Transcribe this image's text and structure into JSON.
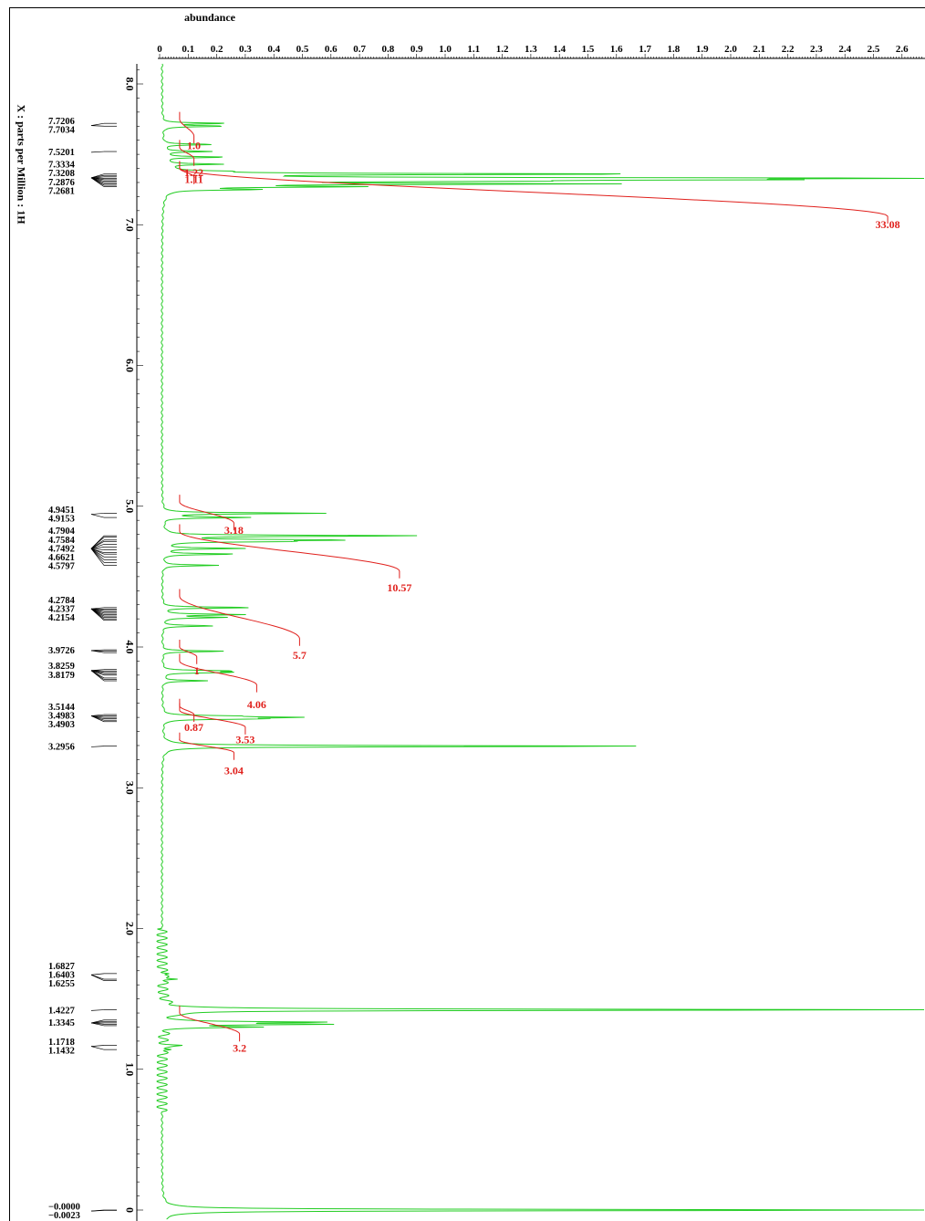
{
  "chart_data": {
    "type": "line",
    "xlabel": "abundance",
    "ylabel": "X : parts per Million : 1H",
    "x_axis": {
      "min": 0,
      "max": 2.6,
      "tick_labels": [
        "0",
        "0.1",
        "0.2",
        "0.3",
        "0.4",
        "0.5",
        "0.6",
        "0.7",
        "0.8",
        "0.9",
        "1.0",
        "1.1",
        "1.2",
        "1.3",
        "1.4",
        "1.5",
        "1.6",
        "1.7",
        "1.8",
        "1.9",
        "2.0",
        "2.1",
        "2.2",
        "2.3",
        "2.4",
        "2.5",
        "2.6"
      ]
    },
    "y_axis": {
      "max": 8.2,
      "min": -0.05,
      "reversed": true,
      "ticks": [
        8.0,
        7.0,
        6.0,
        5.0,
        4.0,
        3.0,
        2.0,
        1.0,
        0
      ],
      "tick_labels": [
        "8.0",
        "7.0",
        "6.0",
        "5.0",
        "4.0",
        "3.0",
        "2.0",
        "1.0",
        "0"
      ]
    },
    "grid": false,
    "spectrum_color": "#22cc22",
    "integral_color": "#e0201c",
    "peaks": [
      {
        "ppm": 7.72,
        "abundance": 0.22
      },
      {
        "ppm": 7.7,
        "abundance": 0.22
      },
      {
        "ppm": 7.57,
        "abundance": 0.18
      },
      {
        "ppm": 7.52,
        "abundance": 0.17
      },
      {
        "ppm": 7.48,
        "abundance": 0.22
      },
      {
        "ppm": 7.43,
        "abundance": 0.2
      },
      {
        "ppm": 7.38,
        "abundance": 0.14
      },
      {
        "ppm": 7.36,
        "abundance": 1.66
      },
      {
        "ppm": 7.33,
        "abundance": 2.58
      },
      {
        "ppm": 7.32,
        "abundance": 1.67
      },
      {
        "ppm": 7.31,
        "abundance": 0.9
      },
      {
        "ppm": 7.29,
        "abundance": 1.46
      },
      {
        "ppm": 7.27,
        "abundance": 0.6
      },
      {
        "ppm": 7.25,
        "abundance": 0.3
      },
      {
        "ppm": 4.95,
        "abundance": 0.57
      },
      {
        "ppm": 4.92,
        "abundance": 0.3
      },
      {
        "ppm": 4.79,
        "abundance": 0.91
      },
      {
        "ppm": 4.76,
        "abundance": 0.6
      },
      {
        "ppm": 4.75,
        "abundance": 0.38
      },
      {
        "ppm": 4.7,
        "abundance": 0.28
      },
      {
        "ppm": 4.66,
        "abundance": 0.26
      },
      {
        "ppm": 4.58,
        "abundance": 0.2
      },
      {
        "ppm": 4.28,
        "abundance": 0.32
      },
      {
        "ppm": 4.23,
        "abundance": 0.28
      },
      {
        "ppm": 4.21,
        "abundance": 0.22
      },
      {
        "ppm": 4.15,
        "abundance": 0.18
      },
      {
        "ppm": 3.97,
        "abundance": 0.22
      },
      {
        "ppm": 3.83,
        "abundance": 0.22
      },
      {
        "ppm": 3.82,
        "abundance": 0.23
      },
      {
        "ppm": 3.76,
        "abundance": 0.16
      },
      {
        "ppm": 3.51,
        "abundance": 0.2
      },
      {
        "ppm": 3.5,
        "abundance": 0.43
      },
      {
        "ppm": 3.49,
        "abundance": 0.3
      },
      {
        "ppm": 3.2956,
        "abundance": 1.74
      },
      {
        "ppm": 1.68,
        "abundance": 0.04
      },
      {
        "ppm": 1.64,
        "abundance": 0.07
      },
      {
        "ppm": 1.4227,
        "abundance": 2.8
      },
      {
        "ppm": 1.3345,
        "abundance": 0.54
      },
      {
        "ppm": 1.32,
        "abundance": 0.57
      },
      {
        "ppm": 1.3,
        "abundance": 0.3
      },
      {
        "ppm": 1.17,
        "abundance": 0.06
      },
      {
        "ppm": 1.14,
        "abundance": 0.05
      },
      {
        "ppm": 0.0,
        "abundance": 2.8
      },
      {
        "ppm": -0.0023,
        "abundance": 0.2
      }
    ],
    "integrals": [
      {
        "from_ppm": 7.75,
        "to_ppm": 7.63,
        "value": "1.0",
        "label_ppm": 7.6,
        "label_abundance": 0.12
      },
      {
        "from_ppm": 7.55,
        "to_ppm": 7.47,
        "value": "1.22",
        "label_ppm": 7.41,
        "label_abundance": 0.12
      },
      {
        "from_ppm": 7.4,
        "to_ppm": 7.06,
        "value": "33.08",
        "label_ppm": 7.04,
        "label_abundance": 2.55
      },
      {
        "from_ppm": 7.4,
        "to_ppm": 7.34,
        "value": "1.11",
        "label_ppm": 7.36,
        "label_abundance": 0.12
      },
      {
        "from_ppm": 5.03,
        "to_ppm": 4.88,
        "value": "3.18",
        "label_ppm": 4.87,
        "label_abundance": 0.26
      },
      {
        "from_ppm": 4.82,
        "to_ppm": 4.54,
        "value": "10.57",
        "label_ppm": 4.46,
        "label_abundance": 0.84
      },
      {
        "from_ppm": 4.36,
        "to_ppm": 4.06,
        "value": "5.7",
        "label_ppm": 3.98,
        "label_abundance": 0.49
      },
      {
        "from_ppm": 4.0,
        "to_ppm": 3.93,
        "value": "1",
        "label_ppm": 3.87,
        "label_abundance": 0.13
      },
      {
        "from_ppm": 3.9,
        "to_ppm": 3.73,
        "value": "4.06",
        "label_ppm": 3.63,
        "label_abundance": 0.34
      },
      {
        "from_ppm": 3.58,
        "to_ppm": 3.52,
        "value": "0.87",
        "label_ppm": 3.47,
        "label_abundance": 0.12
      },
      {
        "from_ppm": 3.55,
        "to_ppm": 3.43,
        "value": "3.53",
        "label_ppm": 3.38,
        "label_abundance": 0.3
      },
      {
        "from_ppm": 3.34,
        "to_ppm": 3.25,
        "value": "3.04",
        "label_ppm": 3.16,
        "label_abundance": 0.26
      },
      {
        "from_ppm": 1.4,
        "to_ppm": 1.25,
        "value": "3.2",
        "label_ppm": 1.19,
        "label_abundance": 0.28
      }
    ],
    "peak_label_groups": [
      {
        "labels": [
          "7.7206",
          "7.7034"
        ],
        "lines": [
          7.72,
          7.7
        ]
      },
      {
        "labels": [
          "7.5201"
        ],
        "lines": [
          7.52
        ]
      },
      {
        "labels": [
          "7.3334",
          "7.3208",
          "7.2876",
          "7.2681"
        ],
        "lines": [
          7.36,
          7.35,
          7.34,
          7.33,
          7.32,
          7.31,
          7.3,
          7.29,
          7.28,
          7.27
        ]
      },
      {
        "labels": [
          "4.9451",
          "4.9153"
        ],
        "lines": [
          4.95,
          4.92
        ]
      },
      {
        "labels": [
          "4.7904",
          "4.7584",
          "4.7492",
          "4.6621",
          "4.5797"
        ],
        "lines": [
          4.79,
          4.78,
          4.76,
          4.75,
          4.73,
          4.71,
          4.69,
          4.67,
          4.66,
          4.64,
          4.62,
          4.6,
          4.58
        ]
      },
      {
        "labels": [
          "4.2784",
          "4.2337",
          "4.2154"
        ],
        "lines": [
          4.28,
          4.27,
          4.26,
          4.25,
          4.24,
          4.23,
          4.22,
          4.21,
          4.2,
          4.19
        ]
      },
      {
        "labels": [
          "3.9726"
        ],
        "lines": [
          3.98,
          3.97,
          3.96
        ]
      },
      {
        "labels": [
          "3.8259",
          "3.8179"
        ],
        "lines": [
          3.84,
          3.83,
          3.82,
          3.81,
          3.8,
          3.78,
          3.77,
          3.76
        ]
      },
      {
        "labels": [
          "3.5144",
          "3.4983",
          "3.4903"
        ],
        "lines": [
          3.52,
          3.51,
          3.5,
          3.49,
          3.48,
          3.47
        ]
      },
      {
        "labels": [
          "3.2956"
        ],
        "lines": [
          3.2956
        ]
      },
      {
        "labels": [
          "1.6827",
          "1.6403",
          "1.6255"
        ],
        "lines": [
          1.68,
          1.64,
          1.63
        ]
      },
      {
        "labels": [
          "1.4227"
        ],
        "lines": [
          1.4227
        ]
      },
      {
        "labels": [
          "1.3345"
        ],
        "lines": [
          1.35,
          1.34,
          1.33,
          1.32,
          1.31
        ]
      },
      {
        "labels": [
          "1.1718",
          "1.1432"
        ],
        "lines": [
          1.17,
          1.14
        ]
      },
      {
        "labels": [
          "−0.0000",
          "−0.0023"
        ],
        "lines": [
          0.0,
          -0.0023
        ]
      }
    ]
  }
}
